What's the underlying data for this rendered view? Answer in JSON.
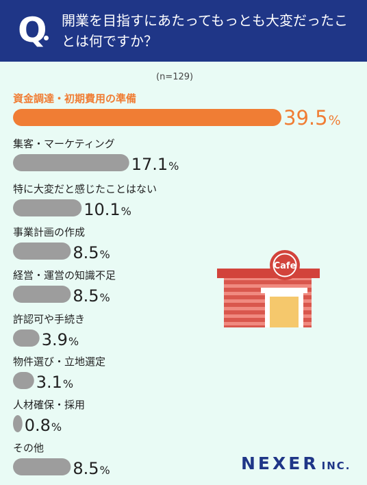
{
  "header": {
    "q_mark": "Q",
    "question": "開業を目指すにあたってもっとも大変だったことは何ですか？"
  },
  "sample_size": "(n=129)",
  "colors": {
    "header_bg": "#1f3687",
    "background": "#e9fbf5",
    "highlight_bar": "#f07d34",
    "bar": "#9d9d9d",
    "highlight_text": "#f07d34"
  },
  "chart_data": {
    "type": "bar",
    "orientation": "horizontal",
    "categories": [
      "資金調達・初期費用の準備",
      "集客・マーケティング",
      "特に大変だと感じたことはない",
      "事業計画の作成",
      "経営・運営の知識不足",
      "許認可や手続き",
      "物件選び・立地選定",
      "人材確保・採用",
      "その他"
    ],
    "values": [
      39.5,
      17.1,
      10.1,
      8.5,
      8.5,
      3.9,
      3.1,
      0.8,
      8.5
    ],
    "value_labels": [
      "39.5",
      "17.1",
      "10.1",
      "8.5",
      "8.5",
      "3.9",
      "3.1",
      "0.8",
      "8.5"
    ],
    "unit": "%",
    "highlight_index": 0
  },
  "illustration": {
    "icon": "cafe-storefront-icon",
    "sign_text": "Cafe"
  },
  "logo": {
    "name": "NEXER",
    "suffix": "INC."
  }
}
